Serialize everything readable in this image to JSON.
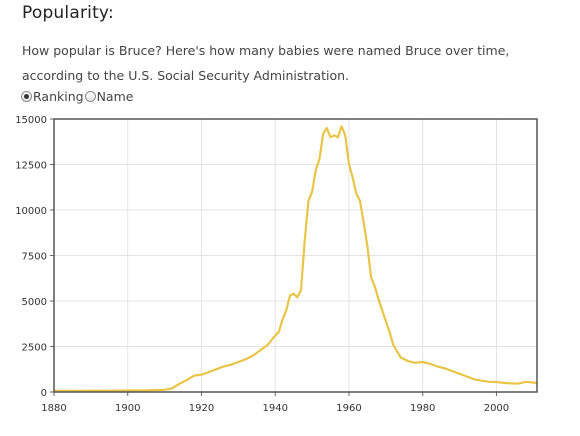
{
  "section": {
    "title": "Popularity:",
    "description_line1": "How popular is Bruce? Here's how many babies were named Bruce over time,",
    "description_line2": "according to the U.S. Social Security Administration."
  },
  "radio_group": {
    "options": [
      {
        "label": "Ranking",
        "selected": true
      },
      {
        "label": "Name",
        "selected": false
      }
    ]
  },
  "chart_data": {
    "type": "line",
    "title": "",
    "xlabel": "",
    "ylabel": "",
    "xlim": [
      1880,
      2011
    ],
    "ylim": [
      0,
      15000
    ],
    "x_ticks": [
      1880,
      1900,
      1920,
      1940,
      1960,
      1980,
      2000
    ],
    "y_ticks": [
      0,
      2500,
      5000,
      7500,
      10000,
      12500,
      15000
    ],
    "grid": true,
    "legend": "none",
    "series": [
      {
        "color": "#e8c547",
        "x": [
          1880,
          1885,
          1890,
          1895,
          1900,
          1905,
          1910,
          1912,
          1914,
          1916,
          1918,
          1920,
          1922,
          1924,
          1926,
          1928,
          1930,
          1932,
          1934,
          1936,
          1938,
          1940,
          1941,
          1942,
          1943,
          1944,
          1945,
          1946,
          1947,
          1948,
          1949,
          1950,
          1951,
          1952,
          1953,
          1954,
          1955,
          1956,
          1957,
          1958,
          1959,
          1960,
          1961,
          1962,
          1963,
          1964,
          1965,
          1966,
          1967,
          1968,
          1969,
          1970,
          1971,
          1972,
          1974,
          1976,
          1978,
          1980,
          1982,
          1984,
          1986,
          1988,
          1990,
          1992,
          1994,
          1996,
          1998,
          2000,
          2002,
          2004,
          2006,
          2008,
          2010,
          2011
        ],
        "values": [
          60,
          60,
          70,
          70,
          80,
          90,
          120,
          200,
          450,
          650,
          900,
          950,
          1100,
          1250,
          1400,
          1500,
          1650,
          1800,
          2000,
          2300,
          2600,
          3100,
          3300,
          4000,
          4500,
          5300,
          5400,
          5200,
          5600,
          8300,
          10500,
          11000,
          12200,
          12800,
          14200,
          14500,
          14000,
          14100,
          14000,
          14600,
          14100,
          12500,
          11800,
          10900,
          10500,
          9300,
          8000,
          6300,
          5800,
          5100,
          4500,
          3900,
          3300,
          2600,
          1900,
          1700,
          1600,
          1650,
          1550,
          1400,
          1300,
          1150,
          1000,
          850,
          700,
          620,
          560,
          550,
          500,
          470,
          460,
          560,
          520,
          480
        ]
      }
    ]
  }
}
